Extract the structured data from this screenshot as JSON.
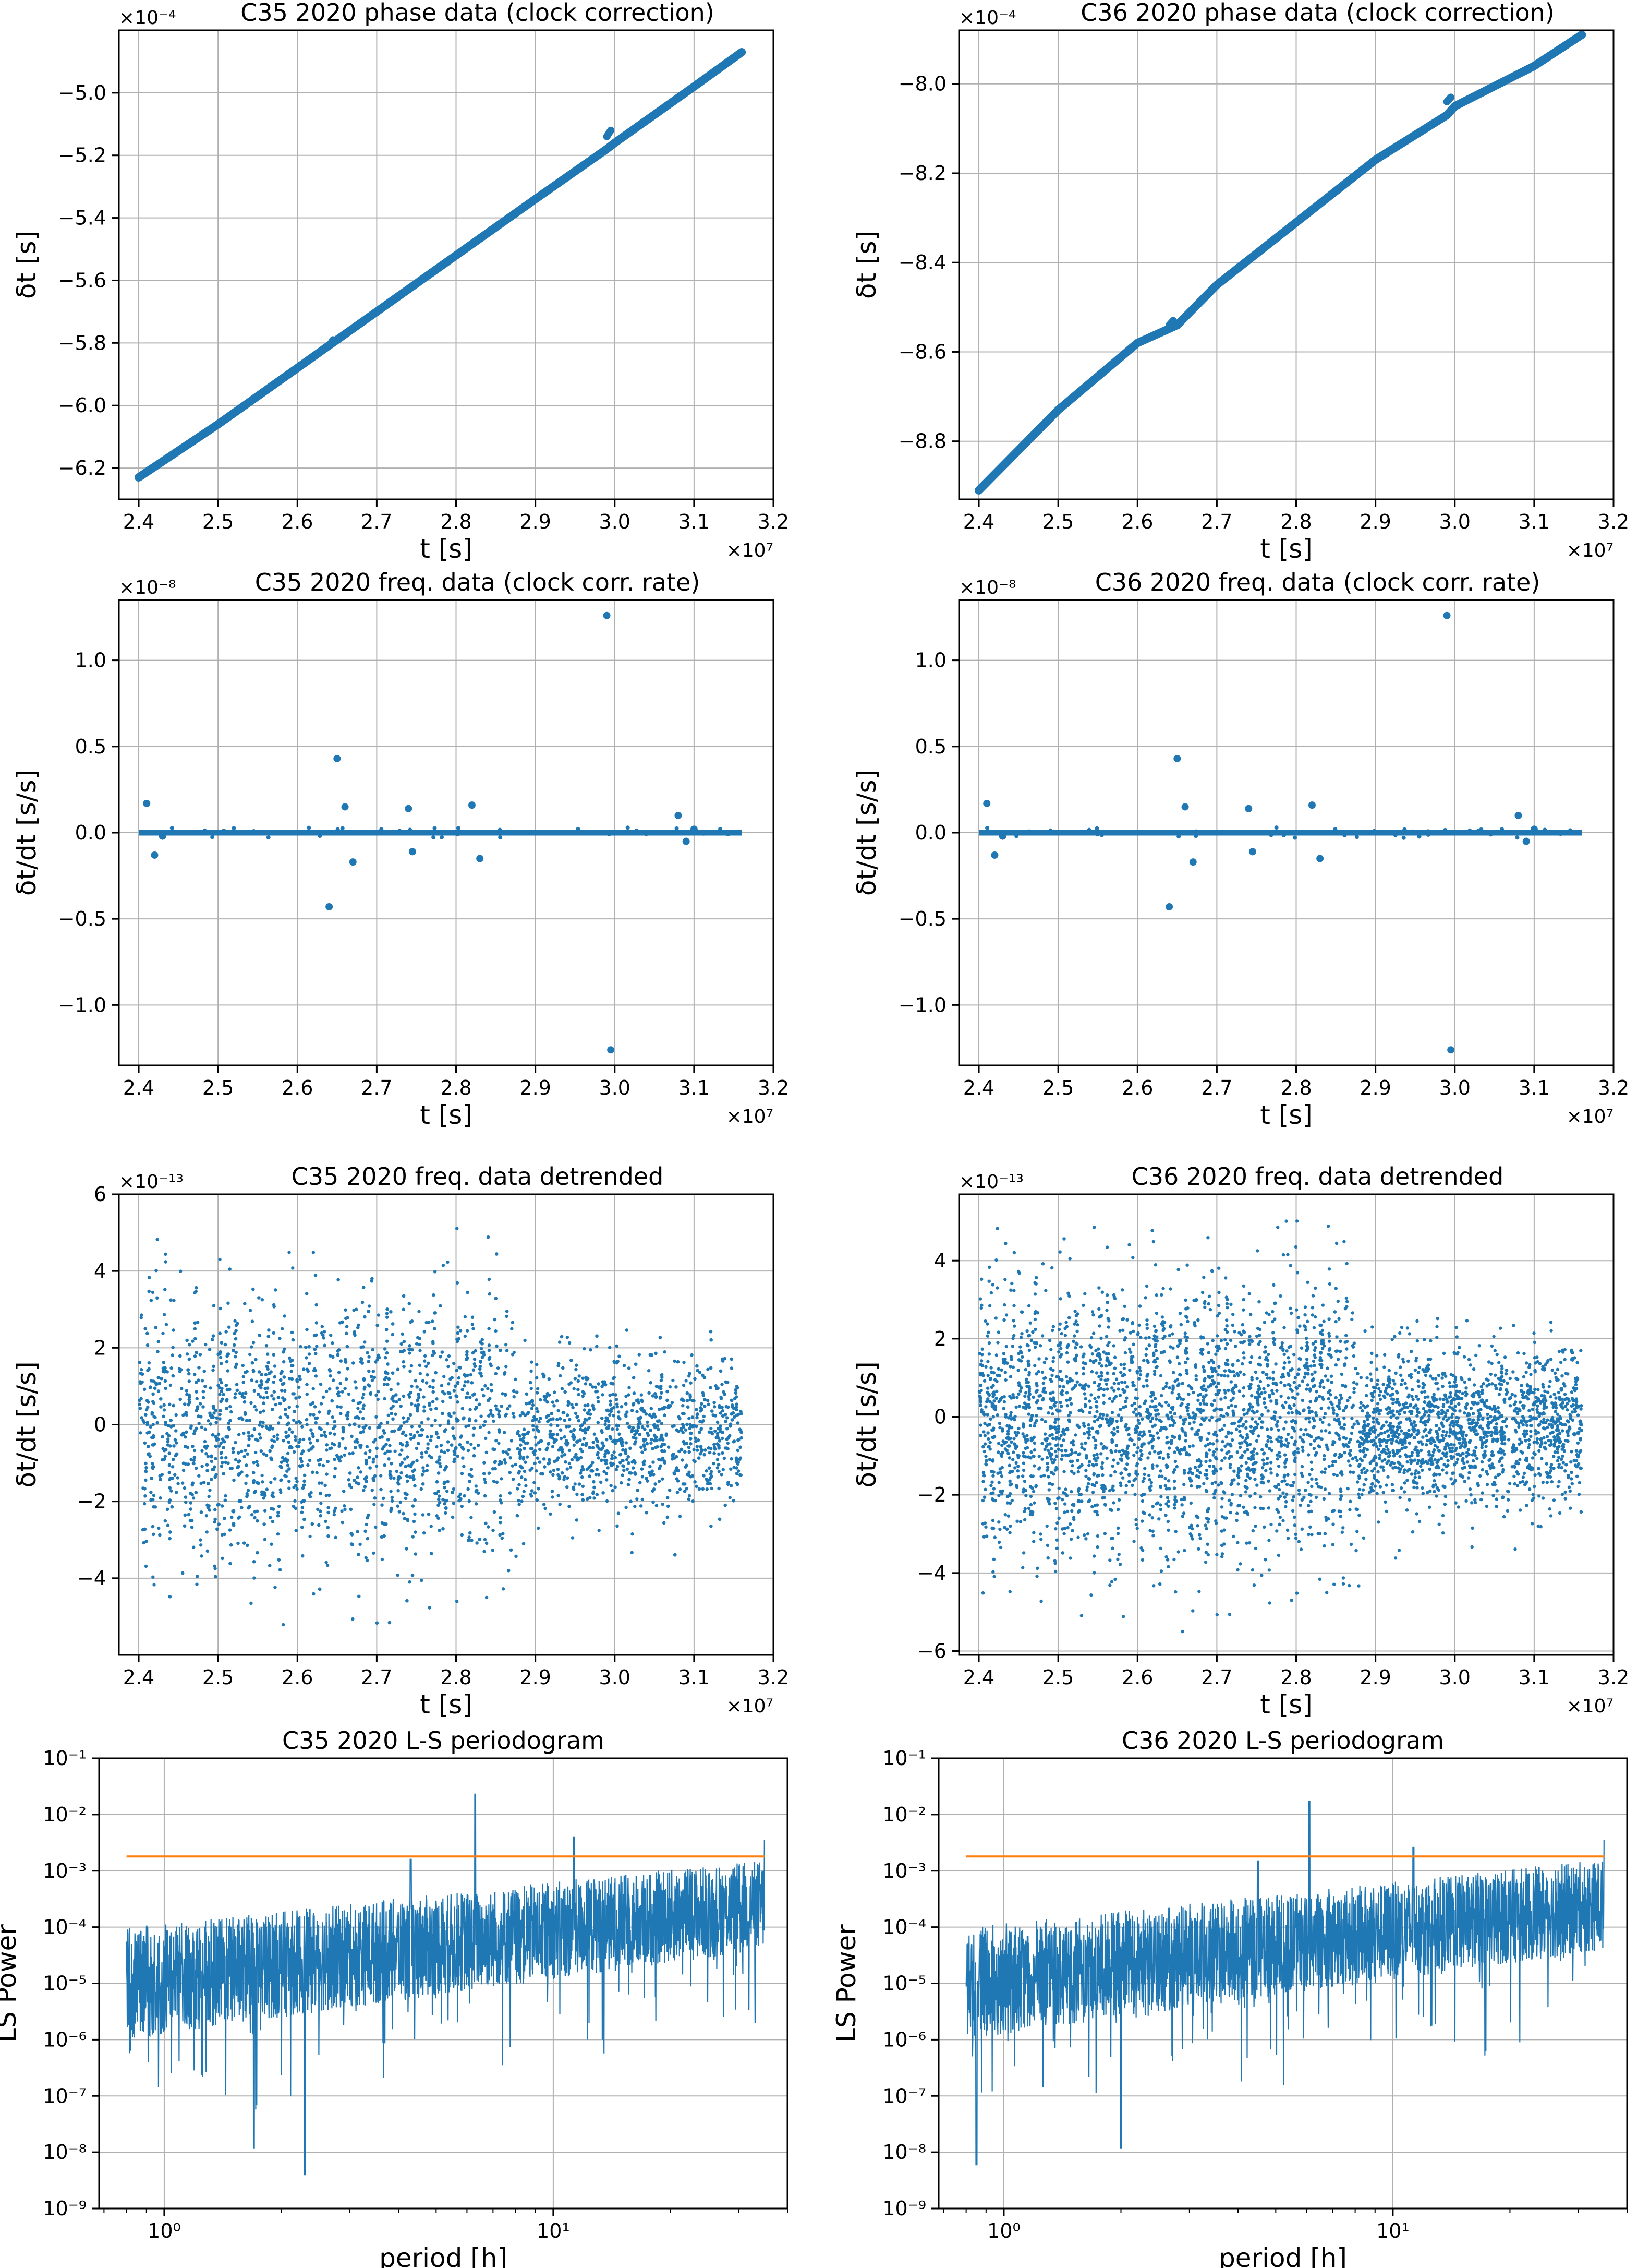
{
  "colors": {
    "series": "#1f77b4",
    "threshold": "#ff7f0e",
    "grid": "#b0b0b0",
    "axes": "#000000"
  },
  "chart_data": [
    {
      "type": "line",
      "title": "C35 2020 phase data (clock correction)",
      "xlabel": "t [s]",
      "ylabel": "δt [s]",
      "xscale": "linear",
      "yscale": "linear",
      "xlim": [
        23750000.0,
        32000000.0
      ],
      "ylim": [
        -0.00063,
        -0.00048
      ],
      "x_ticks": [
        24000000.0,
        25000000.0,
        26000000.0,
        27000000.0,
        28000000.0,
        29000000.0,
        30000000.0,
        31000000.0,
        32000000.0
      ],
      "x_tick_labels": [
        "2.4",
        "2.5",
        "2.6",
        "2.7",
        "2.8",
        "2.9",
        "3.0",
        "3.1",
        "3.2"
      ],
      "x_multiplier": "×10⁷",
      "y_ticks": [
        -0.00062,
        -0.0006,
        -0.00058,
        -0.00056,
        -0.00054,
        -0.00052,
        -0.0005
      ],
      "y_tick_labels": [
        "−6.2",
        "−6.0",
        "−5.8",
        "−5.6",
        "−5.4",
        "−5.2",
        "−5.0"
      ],
      "y_multiplier": "×10⁻⁴",
      "series": [
        {
          "x": [
            24000000.0,
            25000000.0,
            26000000.0,
            26500000.0,
            27000000.0,
            28000000.0,
            29000000.0,
            29900000.0,
            30000000.0,
            31000000.0,
            31600000.0
          ],
          "y": [
            -0.000623,
            -0.000606,
            -0.000588,
            -0.000579,
            -0.00057,
            -0.000552,
            -0.000534,
            -0.000518,
            -0.000516,
            -0.000498,
            -0.000487
          ]
        }
      ],
      "segments": [
        {
          "x": [
            29900000.0,
            29950000.0
          ],
          "y": [
            -0.000514,
            -0.000512
          ]
        },
        {
          "x": [
            26400000.0,
            26450000.0
          ],
          "y": [
            -0.000581,
            -0.000579
          ]
        }
      ],
      "grid": true
    },
    {
      "type": "line",
      "title": "C36 2020 phase data (clock correction)",
      "xlabel": "t [s]",
      "ylabel": "δt [s]",
      "xscale": "linear",
      "yscale": "linear",
      "xlim": [
        23750000.0,
        32000000.0
      ],
      "ylim": [
        -0.000893,
        -0.000788
      ],
      "x_ticks": [
        24000000.0,
        25000000.0,
        26000000.0,
        27000000.0,
        28000000.0,
        29000000.0,
        30000000.0,
        31000000.0,
        32000000.0
      ],
      "x_tick_labels": [
        "2.4",
        "2.5",
        "2.6",
        "2.7",
        "2.8",
        "2.9",
        "3.0",
        "3.1",
        "3.2"
      ],
      "x_multiplier": "×10⁷",
      "y_ticks": [
        -0.00088,
        -0.00086,
        -0.00084,
        -0.00082,
        -0.0008
      ],
      "y_tick_labels": [
        "−8.8",
        "−8.6",
        "−8.4",
        "−8.2",
        "−8.0"
      ],
      "y_multiplier": "×10⁻⁴",
      "series": [
        {
          "x": [
            24000000.0,
            25000000.0,
            26000000.0,
            26500000.0,
            27000000.0,
            28000000.0,
            29000000.0,
            29900000.0,
            30000000.0,
            31000000.0,
            31600000.0
          ],
          "y": [
            -0.000891,
            -0.000873,
            -0.000858,
            -0.000854,
            -0.000845,
            -0.000831,
            -0.000817,
            -0.000807,
            -0.000805,
            -0.000796,
            -0.000789
          ]
        }
      ],
      "segments": [
        {
          "x": [
            29900000.0,
            29950000.0
          ],
          "y": [
            -0.000804,
            -0.000803
          ]
        },
        {
          "x": [
            26400000.0,
            26450000.0
          ],
          "y": [
            -0.000854,
            -0.000853
          ]
        }
      ],
      "grid": true
    },
    {
      "type": "scatter",
      "title": "C35 2020 freq. data (clock corr. rate)",
      "xlabel": "t [s]",
      "ylabel": "δt/dt  [s/s]",
      "xscale": "linear",
      "yscale": "linear",
      "xlim": [
        23750000.0,
        32000000.0
      ],
      "ylim": [
        -1.35e-08,
        1.35e-08
      ],
      "x_ticks": [
        24000000.0,
        25000000.0,
        26000000.0,
        27000000.0,
        28000000.0,
        29000000.0,
        30000000.0,
        31000000.0,
        32000000.0
      ],
      "x_tick_labels": [
        "2.4",
        "2.5",
        "2.6",
        "2.7",
        "2.8",
        "2.9",
        "3.0",
        "3.1",
        "3.2"
      ],
      "x_multiplier": "×10⁷",
      "y_ticks": [
        -1e-08,
        -5e-09,
        0,
        5e-09,
        1e-08
      ],
      "y_tick_labels": [
        "−1.0",
        "−0.5",
        "0.0",
        "0.5",
        "1.0"
      ],
      "y_multiplier": "×10⁻⁸",
      "baseline": {
        "x": [
          24000000.0,
          31600000.0
        ],
        "y": 0
      },
      "series": [
        {
          "x": [
            24100000.0,
            24200000.0,
            24300000.0,
            26400000.0,
            26500000.0,
            26600000.0,
            26700000.0,
            27400000.0,
            27450000.0,
            28200000.0,
            28300000.0,
            29900000.0,
            29950000.0,
            30800000.0,
            30900000.0,
            31000000.0
          ],
          "y": [
            1.7e-09,
            -1.3e-09,
            -2e-10,
            -4.3e-09,
            4.3e-09,
            1.5e-09,
            -1.7e-09,
            1.4e-09,
            -1.1e-09,
            1.6e-09,
            -1.5e-09,
            1.26e-08,
            -1.26e-08,
            1e-09,
            -5e-10,
            2e-10
          ]
        }
      ],
      "grid": true
    },
    {
      "type": "scatter",
      "title": "C36 2020 freq. data (clock corr. rate)",
      "xlabel": "t [s]",
      "ylabel": "δt/dt  [s/s]",
      "xscale": "linear",
      "yscale": "linear",
      "xlim": [
        23750000.0,
        32000000.0
      ],
      "ylim": [
        -1.35e-08,
        1.35e-08
      ],
      "x_ticks": [
        24000000.0,
        25000000.0,
        26000000.0,
        27000000.0,
        28000000.0,
        29000000.0,
        30000000.0,
        31000000.0,
        32000000.0
      ],
      "x_tick_labels": [
        "2.4",
        "2.5",
        "2.6",
        "2.7",
        "2.8",
        "2.9",
        "3.0",
        "3.1",
        "3.2"
      ],
      "x_multiplier": "×10⁷",
      "y_ticks": [
        -1e-08,
        -5e-09,
        0,
        5e-09,
        1e-08
      ],
      "y_tick_labels": [
        "−1.0",
        "−0.5",
        "0.0",
        "0.5",
        "1.0"
      ],
      "y_multiplier": "×10⁻⁸",
      "baseline": {
        "x": [
          24000000.0,
          31600000.0
        ],
        "y": 0
      },
      "series": [
        {
          "x": [
            24100000.0,
            24200000.0,
            24300000.0,
            26400000.0,
            26500000.0,
            26600000.0,
            26700000.0,
            27400000.0,
            27450000.0,
            28200000.0,
            28300000.0,
            29900000.0,
            29950000.0,
            30800000.0,
            30900000.0,
            31000000.0
          ],
          "y": [
            1.7e-09,
            -1.3e-09,
            -2e-10,
            -4.3e-09,
            4.3e-09,
            1.5e-09,
            -1.7e-09,
            1.4e-09,
            -1.1e-09,
            1.6e-09,
            -1.5e-09,
            1.26e-08,
            -1.26e-08,
            1e-09,
            -5e-10,
            2e-10
          ]
        }
      ],
      "grid": true
    },
    {
      "type": "scatter",
      "title": "C35 2020 freq. data detrended",
      "xlabel": "t [s]",
      "ylabel": "δt/dt [s/s]",
      "xscale": "linear",
      "yscale": "linear",
      "xlim": [
        23750000.0,
        32000000.0
      ],
      "ylim": [
        -6e-13,
        6e-13
      ],
      "x_ticks": [
        24000000.0,
        25000000.0,
        26000000.0,
        27000000.0,
        28000000.0,
        29000000.0,
        30000000.0,
        31000000.0,
        32000000.0
      ],
      "x_tick_labels": [
        "2.4",
        "2.5",
        "2.6",
        "2.7",
        "2.8",
        "2.9",
        "3.0",
        "3.1",
        "3.2"
      ],
      "x_multiplier": "×10⁷",
      "y_ticks": [
        -4e-13,
        -2e-13,
        0,
        2e-13,
        4e-13,
        6e-13
      ],
      "y_tick_labels": [
        "−4",
        "−2",
        "0",
        "2",
        "4",
        "6"
      ],
      "y_multiplier": "×10⁻¹³",
      "cloud": {
        "x_range": [
          24000000.0,
          31600000.0
        ],
        "split_x": 28800000.0,
        "early_spread": 2.4e-13,
        "late_spread": 1e-13,
        "late_center": -3e-14,
        "extreme_min": -5.4e-13,
        "extreme_max": 5.4e-13
      },
      "grid": true
    },
    {
      "type": "scatter",
      "title": "C36 2020 freq. data detrended",
      "xlabel": "t [s]",
      "ylabel": "δt/dt [s/s]",
      "xscale": "linear",
      "yscale": "linear",
      "xlim": [
        23750000.0,
        32000000.0
      ],
      "ylim": [
        -6.1e-13,
        5.7e-13
      ],
      "x_ticks": [
        24000000.0,
        25000000.0,
        26000000.0,
        27000000.0,
        28000000.0,
        29000000.0,
        30000000.0,
        31000000.0,
        32000000.0
      ],
      "x_tick_labels": [
        "2.4",
        "2.5",
        "2.6",
        "2.7",
        "2.8",
        "2.9",
        "3.0",
        "3.1",
        "3.2"
      ],
      "x_multiplier": "×10⁷",
      "y_ticks": [
        -6e-13,
        -4e-13,
        -2e-13,
        0,
        2e-13,
        4e-13
      ],
      "y_tick_labels": [
        "−6",
        "−4",
        "−2",
        "0",
        "2",
        "4"
      ],
      "y_multiplier": "×10⁻¹³",
      "cloud": {
        "x_range": [
          24000000.0,
          31600000.0
        ],
        "split_x": 28800000.0,
        "early_spread": 2.4e-13,
        "late_spread": 1e-13,
        "late_center": -3e-14,
        "extreme_min": -5.5e-13,
        "extreme_max": 5.3e-13
      },
      "grid": true
    },
    {
      "type": "line",
      "title": "C35 2020 L-S periodogram",
      "xlabel": "period [h]",
      "ylabel": "LS Power",
      "xscale": "log",
      "yscale": "log",
      "xlim": [
        0.68,
        40
      ],
      "ylim": [
        1e-09,
        0.1
      ],
      "x_ticks": [
        1,
        10
      ],
      "x_tick_labels": [
        "10⁰",
        "10¹"
      ],
      "y_ticks": [
        1e-09,
        1e-08,
        1e-07,
        1e-06,
        1e-05,
        0.0001,
        0.001,
        0.01,
        0.1
      ],
      "y_tick_labels": [
        "10⁻⁹",
        "10⁻⁸",
        "10⁻⁷",
        "10⁻⁶",
        "10⁻⁵",
        "10⁻⁴",
        "10⁻³",
        "10⁻²",
        "10⁻¹"
      ],
      "threshold": {
        "x": [
          0.8,
          35
        ],
        "y": 0.0018
      },
      "spectrum": {
        "x_range": [
          0.8,
          35
        ],
        "peaks": [
          {
            "x": 6.3,
            "y": 0.023
          },
          {
            "x": 11.3,
            "y": 0.004
          },
          {
            "x": 4.3,
            "y": 0.0016
          },
          {
            "x": 35,
            "y": 0.0035
          },
          {
            "x": 2.3,
            "y": 4e-09
          },
          {
            "x": 1.7,
            "y": 1.2e-08
          }
        ]
      },
      "grid": true
    },
    {
      "type": "line",
      "title": "C36 2020 L-S periodogram",
      "xlabel": "period [h]",
      "ylabel": "LS Power",
      "xscale": "log",
      "yscale": "log",
      "xlim": [
        0.68,
        40
      ],
      "ylim": [
        1e-09,
        0.1
      ],
      "x_ticks": [
        1,
        10
      ],
      "x_tick_labels": [
        "10⁰",
        "10¹"
      ],
      "y_ticks": [
        1e-09,
        1e-08,
        1e-07,
        1e-06,
        1e-05,
        0.0001,
        0.001,
        0.01,
        0.1
      ],
      "y_tick_labels": [
        "10⁻⁹",
        "10⁻⁸",
        "10⁻⁷",
        "10⁻⁶",
        "10⁻⁵",
        "10⁻⁴",
        "10⁻³",
        "10⁻²",
        "10⁻¹"
      ],
      "threshold": {
        "x": [
          0.8,
          35
        ],
        "y": 0.0018
      },
      "spectrum": {
        "x_range": [
          0.8,
          35
        ],
        "peaks": [
          {
            "x": 6.1,
            "y": 0.017
          },
          {
            "x": 11.3,
            "y": 0.0026
          },
          {
            "x": 4.5,
            "y": 0.0015
          },
          {
            "x": 35,
            "y": 0.0035
          },
          {
            "x": 0.85,
            "y": 6e-09
          },
          {
            "x": 2.0,
            "y": 1.2e-08
          }
        ]
      },
      "grid": true
    }
  ]
}
